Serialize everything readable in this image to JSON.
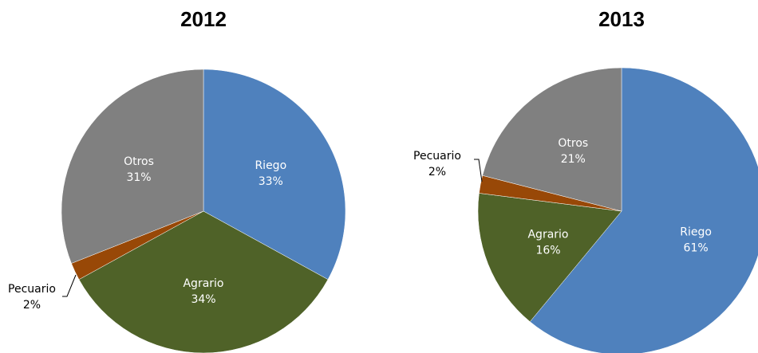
{
  "chart_data": [
    {
      "type": "pie",
      "title": "2012",
      "slices": [
        {
          "label": "Riego",
          "value": 33,
          "value_label": "33%",
          "color": "#4F81BD"
        },
        {
          "label": "Agrario",
          "value": 34,
          "value_label": "34%",
          "color": "#4F6228"
        },
        {
          "label": "Pecuario",
          "value": 2,
          "value_label": "2%",
          "color": "#984807"
        },
        {
          "label": "Otros",
          "value": 31,
          "value_label": "31%",
          "color": "#808080"
        }
      ]
    },
    {
      "type": "pie",
      "title": "2013",
      "slices": [
        {
          "label": "Riego",
          "value": 61,
          "value_label": "61%",
          "color": "#4F81BD"
        },
        {
          "label": "Agrario",
          "value": 16,
          "value_label": "16%",
          "color": "#4F6228"
        },
        {
          "label": "Pecuario",
          "value": 2,
          "value_label": "2%",
          "color": "#984807"
        },
        {
          "label": "Otros",
          "value": 21,
          "value_label": "21%",
          "color": "#808080"
        }
      ]
    }
  ]
}
